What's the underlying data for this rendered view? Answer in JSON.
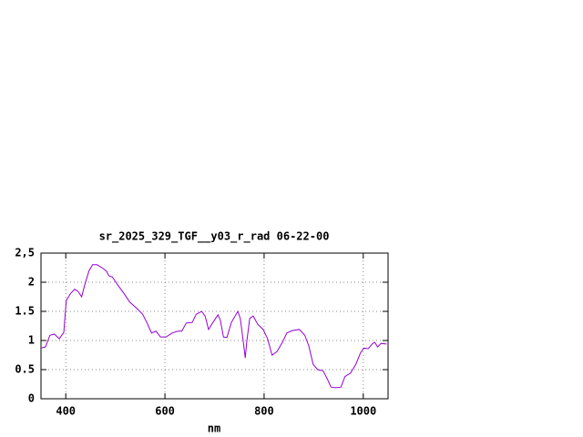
{
  "chart_data": {
    "type": "line",
    "title": "sr_2025_329_TGF__y03_r_rad 06-22-00",
    "xlabel": "nm",
    "xlim": [
      350,
      1050
    ],
    "xticks": [
      400,
      600,
      800,
      1000
    ],
    "ylim": [
      0,
      2.5
    ],
    "yticks": [
      0,
      0.5,
      1,
      1.5,
      2,
      {
        "value": 2.5,
        "label": "2,5"
      }
    ],
    "grid": true,
    "series": [
      {
        "color": "#9400d3",
        "x": [
          350,
          359,
          368,
          377,
          387,
          396,
          401,
          410,
          418,
          425,
          432,
          438,
          447,
          454,
          463,
          473,
          482,
          487,
          494,
          505,
          518,
          529,
          542,
          555,
          564,
          573,
          582,
          591,
          602,
          615,
          626,
          634,
          643,
          655,
          663,
          674,
          681,
          688,
          696,
          707,
          712,
          718,
          725,
          734,
          747,
          752,
          758,
          762,
          765,
          771,
          778,
          787,
          798,
          807,
          816,
          826,
          837,
          846,
          857,
          871,
          882,
          890,
          899,
          908,
          919,
          928,
          935,
          944,
          955,
          963,
          974,
          985,
          994,
          1001,
          1010,
          1018,
          1023,
          1029,
          1036,
          1047
        ],
        "values": [
          0.87,
          0.89,
          1.09,
          1.11,
          1.03,
          1.14,
          1.69,
          1.81,
          1.88,
          1.84,
          1.75,
          1.95,
          2.2,
          2.3,
          2.3,
          2.25,
          2.19,
          2.11,
          2.09,
          1.95,
          1.8,
          1.66,
          1.56,
          1.45,
          1.3,
          1.13,
          1.16,
          1.06,
          1.06,
          1.13,
          1.16,
          1.16,
          1.3,
          1.31,
          1.45,
          1.5,
          1.42,
          1.19,
          1.3,
          1.44,
          1.34,
          1.06,
          1.05,
          1.31,
          1.5,
          1.38,
          0.98,
          0.7,
          0.98,
          1.38,
          1.42,
          1.28,
          1.19,
          1.03,
          0.75,
          0.81,
          0.97,
          1.13,
          1.17,
          1.19,
          1.09,
          0.91,
          0.59,
          0.5,
          0.48,
          0.33,
          0.2,
          0.19,
          0.2,
          0.38,
          0.44,
          0.59,
          0.78,
          0.87,
          0.86,
          0.94,
          0.97,
          0.89,
          0.95,
          0.94
        ]
      }
    ]
  }
}
